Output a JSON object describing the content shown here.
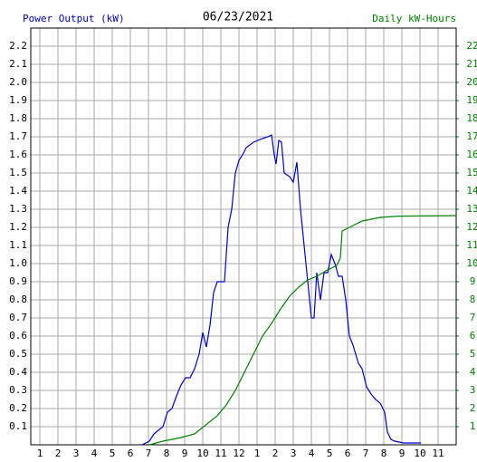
{
  "chart_data": {
    "type": "line",
    "title": "06/23/2021",
    "y_label": "Power Output (kW)",
    "y2_label": "Daily kW-Hours",
    "xlim": [
      0.5,
      24
    ],
    "xticks": [
      1,
      2,
      3,
      4,
      5,
      6,
      7,
      8,
      9,
      10,
      11,
      12,
      {
        "value": 13,
        "label": "1"
      },
      {
        "value": 14,
        "label": "2"
      },
      {
        "value": 15,
        "label": "3"
      },
      {
        "value": 16,
        "label": "4"
      },
      {
        "value": 17,
        "label": "5"
      },
      {
        "value": 18,
        "label": "6"
      },
      {
        "value": 19,
        "label": "7"
      },
      {
        "value": 20,
        "label": "8"
      },
      {
        "value": 21,
        "label": "9"
      },
      {
        "value": 22,
        "label": "10"
      },
      {
        "value": 23,
        "label": "11"
      }
    ],
    "ylim": [
      0,
      2.3
    ],
    "yticks": [
      0.1,
      0.2,
      0.3,
      0.4,
      0.5,
      0.6,
      0.7,
      0.8,
      0.9,
      {
        "value": 1,
        "label": "1.0"
      },
      1.1,
      1.2,
      1.3,
      1.4,
      1.5,
      1.6,
      1.7,
      1.8,
      1.9,
      {
        "value": 2,
        "label": "2.0"
      },
      2.1,
      2.2
    ],
    "y2lim": [
      0,
      23
    ],
    "y2ticks": [
      1,
      2,
      3,
      4,
      5,
      6,
      7,
      8,
      9,
      10,
      11,
      12,
      13,
      14,
      15,
      16,
      17,
      18,
      19,
      20,
      21,
      22
    ],
    "grid": true,
    "series": [
      {
        "name": "Power Output (kW)",
        "color": "#0000cc",
        "x": [
          6.65,
          7.05,
          7.3,
          7.8,
          8.05,
          8.3,
          8.55,
          8.8,
          9.05,
          9.3,
          9.55,
          9.8,
          10,
          10.2,
          10.4,
          10.6,
          10.8,
          11.2,
          11.4,
          11.6,
          11.8,
          12,
          12.2,
          12.4,
          12.8,
          13.3,
          13.6,
          13.8,
          13.95,
          14.05,
          14.2,
          14.35,
          14.5,
          14.8,
          15,
          15.2,
          15.4,
          15.6,
          15.8,
          16,
          16.15,
          16.3,
          16.5,
          16.7,
          16.9,
          17.1,
          17.3,
          17.5,
          17.7,
          17.9,
          18.1,
          18.3,
          18.6,
          18.8,
          19.05,
          19.3,
          19.55,
          19.8,
          20.05,
          20.2,
          20.4,
          20.6,
          21.1,
          22.05
        ],
        "values": [
          0,
          0.02,
          0.06,
          0.1,
          0.18,
          0.2,
          0.27,
          0.33,
          0.37,
          0.37,
          0.42,
          0.5,
          0.62,
          0.54,
          0.66,
          0.84,
          0.9,
          0.9,
          1.2,
          1.3,
          1.5,
          1.57,
          1.6,
          1.64,
          1.67,
          1.69,
          1.7,
          1.71,
          1.6,
          1.55,
          1.68,
          1.67,
          1.5,
          1.48,
          1.45,
          1.56,
          1.3,
          1.1,
          0.9,
          0.7,
          0.7,
          0.95,
          0.8,
          0.95,
          0.95,
          1.05,
          1.0,
          0.93,
          0.93,
          0.8,
          0.6,
          0.55,
          0.45,
          0.42,
          0.32,
          0.28,
          0.25,
          0.23,
          0.18,
          0.07,
          0.03,
          0.02,
          0.01,
          0.01
        ]
      },
      {
        "name": "Daily kW-Hours",
        "color": "#008000",
        "axis": "y2",
        "x": [
          7.05,
          7.8,
          8.8,
          9.55,
          10.05,
          10.8,
          11.3,
          11.8,
          12.3,
          12.8,
          13.3,
          13.8,
          14.3,
          14.8,
          15.3,
          15.8,
          16.3,
          16.8,
          17.4,
          17.6,
          17.7,
          18.3,
          18.8,
          19.8,
          20.8,
          24
        ],
        "values": [
          0,
          0.2,
          0.4,
          0.6,
          1.0,
          1.6,
          2.2,
          3.0,
          4.0,
          5.0,
          6.0,
          6.7,
          7.5,
          8.2,
          8.7,
          9.1,
          9.3,
          9.6,
          9.9,
          10.3,
          11.8,
          12.1,
          12.35,
          12.55,
          12.62,
          12.65
        ]
      }
    ]
  }
}
